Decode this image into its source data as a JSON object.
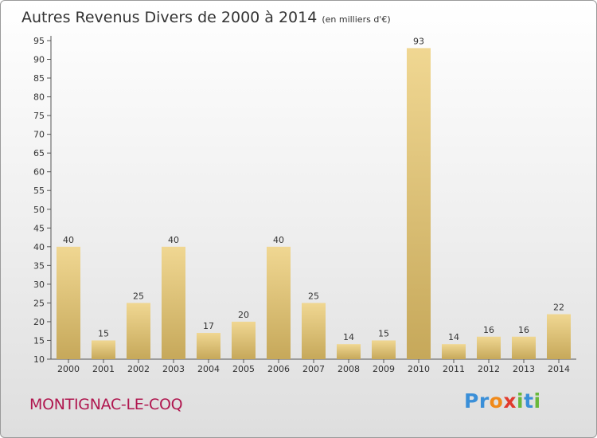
{
  "title": "Autres Revenus Divers de 2000 à 2014",
  "subtitle": "(en milliers d'€)",
  "commune": "MONTIGNAC-LE-COQ",
  "logo": [
    "P",
    "r",
    "o",
    "x",
    "i",
    "t",
    "i"
  ],
  "colors": {
    "bar_light": "#f0d792",
    "bar_dark": "#c6a85a",
    "commune": "#b0174f",
    "logo": [
      "#3a8fd8",
      "#3a8fd8",
      "#f08a1a",
      "#e13a2d",
      "#69b83b",
      "#3a8fd8",
      "#69b83b"
    ]
  },
  "chart_data": {
    "type": "bar",
    "categories": [
      "2000",
      "2001",
      "2002",
      "2003",
      "2004",
      "2005",
      "2006",
      "2007",
      "2008",
      "2009",
      "2010",
      "2011",
      "2012",
      "2013",
      "2014"
    ],
    "values": [
      40,
      15,
      25,
      40,
      17,
      20,
      40,
      25,
      14,
      15,
      93,
      14,
      16,
      16,
      22
    ],
    "data_labels": [
      "40",
      "15",
      "25",
      "40",
      "17",
      "20",
      "40",
      "25",
      "14",
      "15",
      "93",
      "14",
      "16",
      "16",
      "22"
    ],
    "ylim": [
      10,
      95
    ],
    "yticks": [
      "10",
      "15",
      "20",
      "25",
      "30",
      "35",
      "40",
      "45",
      "50",
      "55",
      "60",
      "65",
      "70",
      "75",
      "80",
      "85",
      "90",
      "95"
    ],
    "grid": false
  }
}
